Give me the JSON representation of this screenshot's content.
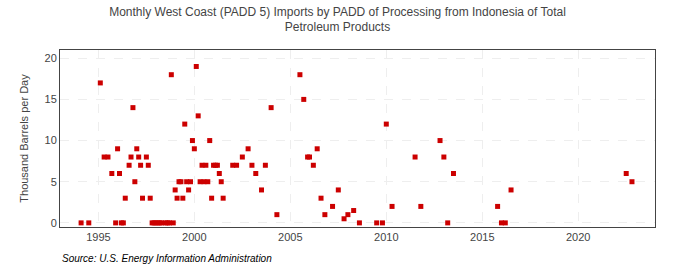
{
  "chart_data": {
    "type": "scatter",
    "title": "Monthly West Coast (PADD 5) Imports by PADD of Processing from Indonesia of Total\nPetroleum Products",
    "ylabel": "Thousand Barrels per Day",
    "annotations": [
      "Source: U.S. Energy Information Administration"
    ],
    "color": "#cc0000",
    "marker": "square",
    "grid": true,
    "xlim": [
      1993.0,
      2024.0
    ],
    "ylim": [
      -0.5,
      21.0
    ],
    "xticks": [
      1995,
      2000,
      2005,
      2010,
      2015,
      2020
    ],
    "yticks": [
      0,
      5,
      10,
      15,
      20
    ],
    "x": [
      1994.1,
      1994.5,
      1995.1,
      1995.3,
      1995.5,
      1995.7,
      1995.9,
      1996.0,
      1996.1,
      1996.2,
      1996.3,
      1996.4,
      1996.6,
      1996.7,
      1996.8,
      1996.9,
      1997.0,
      1997.1,
      1997.2,
      1997.3,
      1997.5,
      1997.6,
      1997.7,
      1997.8,
      1997.9,
      1998.0,
      1998.1,
      1998.2,
      1998.3,
      1998.5,
      1998.6,
      1998.7,
      1998.8,
      1998.9,
      1999.0,
      1999.1,
      1999.2,
      1999.3,
      1999.4,
      1999.5,
      1999.6,
      1999.7,
      1999.8,
      1999.9,
      2000.0,
      2000.1,
      2000.2,
      2000.3,
      2000.4,
      2000.5,
      2000.6,
      2000.7,
      2000.8,
      2000.9,
      2001.0,
      2001.1,
      2001.2,
      2001.3,
      2001.4,
      2001.5,
      2002.0,
      2002.2,
      2002.5,
      2002.8,
      2003.0,
      2003.2,
      2003.5,
      2003.7,
      2004.0,
      2004.3,
      2005.5,
      2005.7,
      2005.9,
      2006.0,
      2006.2,
      2006.4,
      2006.6,
      2006.8,
      2007.2,
      2007.5,
      2007.8,
      2008.0,
      2008.3,
      2008.6,
      2009.5,
      2009.8,
      2010.0,
      2010.3,
      2011.5,
      2011.8,
      2012.8,
      2013.0,
      2013.2,
      2013.5,
      2015.8,
      2016.0,
      2016.2,
      2016.5,
      2022.5,
      2022.8
    ],
    "values": [
      0.0,
      0.0,
      17.0,
      8.0,
      8.0,
      6.0,
      0.0,
      9.0,
      6.0,
      0.0,
      0.0,
      3.0,
      7.0,
      8.0,
      14.0,
      5.0,
      9.0,
      8.0,
      7.0,
      3.0,
      8.0,
      7.0,
      3.0,
      0.0,
      0.0,
      0.0,
      0.0,
      0.0,
      0.0,
      0.0,
      0.0,
      0.0,
      18.0,
      0.0,
      4.0,
      3.0,
      5.0,
      5.0,
      3.0,
      12.0,
      5.0,
      4.0,
      5.0,
      10.0,
      9.0,
      19.0,
      13.0,
      5.0,
      7.0,
      5.0,
      7.0,
      5.0,
      10.0,
      3.0,
      7.0,
      7.0,
      7.0,
      6.0,
      5.0,
      3.0,
      7.0,
      7.0,
      8.0,
      9.0,
      7.0,
      6.0,
      4.0,
      7.0,
      14.0,
      1.0,
      18.0,
      15.0,
      8.0,
      8.0,
      7.0,
      9.0,
      3.0,
      1.0,
      2.0,
      4.0,
      0.5,
      1.0,
      1.5,
      0.0,
      0.0,
      0.0,
      12.0,
      2.0,
      8.0,
      2.0,
      10.0,
      8.0,
      0.0,
      6.0,
      2.0,
      0.0,
      0.0,
      4.0,
      6.0,
      5.0
    ]
  }
}
